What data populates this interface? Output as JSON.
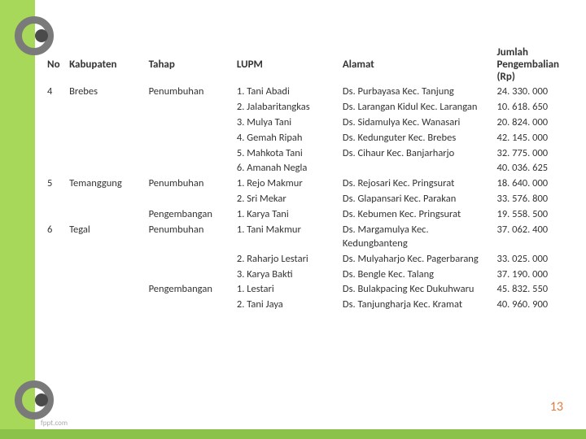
{
  "headers": {
    "no": "No",
    "kabupaten": "Kabupaten",
    "tahap": "Tahap",
    "lupm": "LUPM",
    "alamat": "Alamat",
    "jumlah": "Jumlah Pengembalian (Rp)"
  },
  "rows": [
    {
      "no": "4",
      "kabupaten": "Brebes",
      "tahap": "Penumbuhan",
      "lupm": "1. Tani Abadi",
      "alamat": "Ds. Purbayasa Kec. Tanjung",
      "jumlah": "24. 330. 000"
    },
    {
      "no": "",
      "kabupaten": "",
      "tahap": "",
      "lupm": "2. Jalabaritangkas",
      "alamat": "Ds. Larangan Kidul Kec. Larangan",
      "jumlah": "10. 618. 650"
    },
    {
      "no": "",
      "kabupaten": "",
      "tahap": "",
      "lupm": "3. Mulya Tani",
      "alamat": "Ds. Sidamulya Kec. Wanasari",
      "jumlah": "20. 824. 000"
    },
    {
      "no": "",
      "kabupaten": "",
      "tahap": "",
      "lupm": "4. Gemah Ripah",
      "alamat": "Ds. Kedunguter Kec. Brebes",
      "jumlah": "42. 145. 000"
    },
    {
      "no": "",
      "kabupaten": "",
      "tahap": "",
      "lupm": "5. Mahkota Tani",
      "alamat": "Ds. Cihaur Kec. Banjarharjo",
      "jumlah": "32. 775. 000"
    },
    {
      "no": "",
      "kabupaten": "",
      "tahap": "",
      "lupm": "6. Amanah Negla",
      "alamat": "",
      "jumlah": "40. 036. 625"
    },
    {
      "no": "5",
      "kabupaten": "Temanggung",
      "tahap": "Penumbuhan",
      "lupm": "1. Rejo Makmur",
      "alamat": "Ds. Rejosari Kec. Pringsurat",
      "jumlah": "18. 640. 000"
    },
    {
      "no": "",
      "kabupaten": "",
      "tahap": "",
      "lupm": "2. Sri Mekar",
      "alamat": "Ds. Glapansari Kec. Parakan",
      "jumlah": "33. 576. 800"
    },
    {
      "no": "",
      "kabupaten": "",
      "tahap": "Pengembangan",
      "lupm": "1. Karya Tani",
      "alamat": "Ds. Kebumen Kec. Pringsurat",
      "jumlah": "19. 558. 500"
    },
    {
      "no": "6",
      "kabupaten": "Tegal",
      "tahap": "Penumbuhan",
      "lupm": "1. Tani Makmur",
      "alamat": "Ds. Margamulya Kec. Kedungbanteng",
      "jumlah": "37. 062. 400"
    },
    {
      "no": "",
      "kabupaten": "",
      "tahap": "",
      "lupm": "2. Raharjo Lestari",
      "alamat": "Ds. Mulyaharjo Kec. Pagerbarang",
      "jumlah": "33. 025. 000"
    },
    {
      "no": "",
      "kabupaten": "",
      "tahap": "",
      "lupm": "3. Karya Bakti",
      "alamat": "Ds. Bengle Kec. Talang",
      "jumlah": "37. 190. 000"
    },
    {
      "no": "",
      "kabupaten": "",
      "tahap": "Pengembangan",
      "lupm": "1. Lestari",
      "alamat": "Ds. Bulakpacing Kec Dukuhwaru",
      "jumlah": "45. 832. 550"
    },
    {
      "no": "",
      "kabupaten": "",
      "tahap": "",
      "lupm": "2. Tani Jaya",
      "alamat": "Ds. Tanjungharja Kec. Kramat",
      "jumlah": "40. 960. 900"
    }
  ],
  "pagenum": "13",
  "footer": "fppt.com",
  "binder_positions": [
    20,
    470
  ],
  "colors": {
    "green_bg": "#a8d85a",
    "footer_bar": "#8bc34a",
    "pagenum": "#e57b3c",
    "ring": "#7a7a7a"
  }
}
